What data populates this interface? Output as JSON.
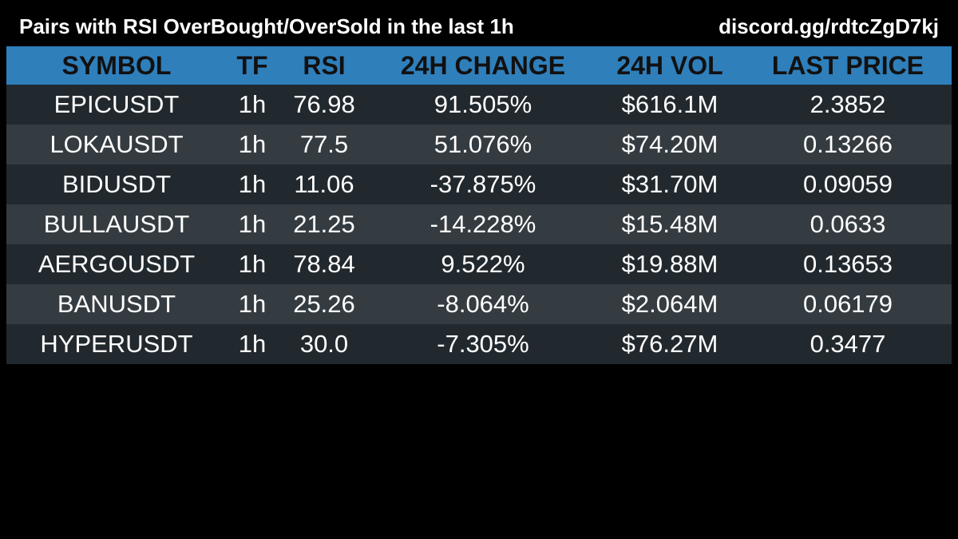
{
  "header": {
    "title": "Pairs with RSI OverBought/OverSold in the last 1h",
    "invite": "discord.gg/rdtcZgD7kj"
  },
  "table": {
    "columns": [
      "SYMBOL",
      "TF",
      "RSI",
      "24H CHANGE",
      "24H VOL",
      "LAST PRICE"
    ],
    "rows": [
      {
        "symbol": "EPICUSDT",
        "tf": "1h",
        "rsi": "76.98",
        "change": "91.505%",
        "vol": "$616.1M",
        "price": "2.3852"
      },
      {
        "symbol": "LOKAUSDT",
        "tf": "1h",
        "rsi": "77.5",
        "change": "51.076%",
        "vol": "$74.20M",
        "price": "0.13266"
      },
      {
        "symbol": "BIDUSDT",
        "tf": "1h",
        "rsi": "11.06",
        "change": "-37.875%",
        "vol": "$31.70M",
        "price": "0.09059"
      },
      {
        "symbol": "BULLAUSDT",
        "tf": "1h",
        "rsi": "21.25",
        "change": "-14.228%",
        "vol": "$15.48M",
        "price": "0.0633"
      },
      {
        "symbol": "AERGOUSDT",
        "tf": "1h",
        "rsi": "78.84",
        "change": "9.522%",
        "vol": "$19.88M",
        "price": "0.13653"
      },
      {
        "symbol": "BANUSDT",
        "tf": "1h",
        "rsi": "25.26",
        "change": "-8.064%",
        "vol": "$2.064M",
        "price": "0.06179"
      },
      {
        "symbol": "HYPERUSDT",
        "tf": "1h",
        "rsi": "30.0",
        "change": "-7.305%",
        "vol": "$76.27M",
        "price": "0.3477"
      }
    ]
  },
  "colors": {
    "background": "#000000",
    "header_bg": "#2f7fbb",
    "row_dark": "#22292e",
    "row_light": "#353c41",
    "text": "#ffffff",
    "header_text": "#111111"
  }
}
